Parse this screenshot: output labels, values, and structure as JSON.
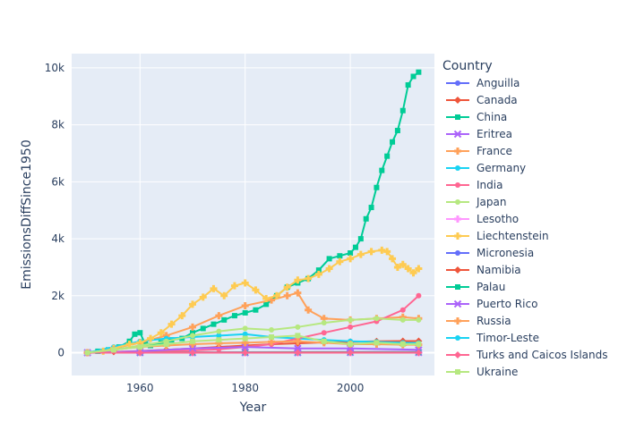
{
  "chart_data": {
    "type": "line",
    "xlabel": "Year",
    "ylabel": "EmissionsDiffSince1950",
    "xlim": [
      1947,
      2016
    ],
    "ylim": [
      -800,
      10500
    ],
    "x_ticks": [
      1960,
      1980,
      2000
    ],
    "x_tick_labels": [
      "1960",
      "1980",
      "2000"
    ],
    "y_ticks": [
      0,
      2000,
      4000,
      6000,
      8000,
      10000
    ],
    "y_tick_labels": [
      "0",
      "2k",
      "4k",
      "6k",
      "8k",
      "10k"
    ],
    "grid": true,
    "legend_title": "Country",
    "legend_position": "right",
    "series": [
      {
        "name": "Anguilla",
        "color": "#636efa",
        "marker": "circle",
        "x": [
          1950,
          1960,
          1970,
          1980,
          1990,
          2000,
          2013
        ],
        "y": [
          0,
          5,
          10,
          15,
          20,
          25,
          30
        ]
      },
      {
        "name": "Canada",
        "color": "#EF553B",
        "marker": "diamond",
        "x": [
          1950,
          1955,
          1960,
          1965,
          1970,
          1975,
          1980,
          1985,
          1990,
          1995,
          2000,
          2005,
          2010,
          2013
        ],
        "y": [
          0,
          30,
          60,
          100,
          150,
          200,
          250,
          300,
          330,
          360,
          380,
          400,
          410,
          410
        ]
      },
      {
        "name": "China",
        "color": "#00cc96",
        "marker": "square",
        "x": [
          1950,
          1952,
          1954,
          1956,
          1958,
          1959,
          1960,
          1961,
          1962,
          1964,
          1966,
          1968,
          1970,
          1972,
          1974,
          1976,
          1978,
          1980,
          1982,
          1984,
          1986,
          1988,
          1990,
          1992,
          1994,
          1996,
          1998,
          2000,
          2001,
          2002,
          2003,
          2004,
          2005,
          2006,
          2007,
          2008,
          2009,
          2010,
          2011,
          2012,
          2013
        ],
        "y": [
          0,
          50,
          100,
          200,
          400,
          650,
          700,
          300,
          250,
          350,
          450,
          500,
          700,
          850,
          1000,
          1150,
          1300,
          1400,
          1500,
          1700,
          2000,
          2300,
          2450,
          2600,
          2900,
          3300,
          3400,
          3500,
          3700,
          4000,
          4700,
          5100,
          5800,
          6400,
          6900,
          7400,
          7800,
          8500,
          9400,
          9700,
          9850
        ]
      },
      {
        "name": "Eritrea",
        "color": "#ab63fa",
        "marker": "x",
        "x": [
          1950,
          1960,
          1970,
          1980,
          1990,
          2000,
          2013
        ],
        "y": [
          0,
          0,
          0,
          0,
          0,
          5,
          5
        ]
      },
      {
        "name": "France",
        "color": "#FFA15A",
        "marker": "cross",
        "x": [
          1950,
          1955,
          1960,
          1965,
          1970,
          1975,
          1980,
          1985,
          1988,
          1990,
          1992,
          1995,
          2000,
          2005,
          2010,
          2013
        ],
        "y": [
          0,
          150,
          350,
          600,
          900,
          1300,
          1650,
          1850,
          2000,
          2100,
          1500,
          1200,
          1150,
          1200,
          1250,
          1200
        ]
      },
      {
        "name": "Germany",
        "color": "#19d3f3",
        "marker": "circle",
        "x": [
          1950,
          1955,
          1960,
          1965,
          1970,
          1975,
          1980,
          1985,
          1990,
          1995,
          2000,
          2005,
          2010,
          2013
        ],
        "y": [
          0,
          200,
          400,
          500,
          550,
          600,
          650,
          550,
          500,
          450,
          400,
          380,
          350,
          340
        ]
      },
      {
        "name": "India",
        "color": "#FF6692",
        "marker": "circle",
        "x": [
          1950,
          1960,
          1970,
          1975,
          1980,
          1985,
          1990,
          1995,
          2000,
          2005,
          2010,
          2013
        ],
        "y": [
          0,
          30,
          80,
          120,
          200,
          300,
          500,
          700,
          900,
          1100,
          1500,
          2000
        ]
      },
      {
        "name": "Japan",
        "color": "#B6E880",
        "marker": "circle",
        "x": [
          1950,
          1955,
          1960,
          1965,
          1970,
          1975,
          1980,
          1985,
          1990,
          1995,
          2000,
          2005,
          2010,
          2013
        ],
        "y": [
          0,
          100,
          250,
          400,
          600,
          750,
          850,
          800,
          900,
          1050,
          1150,
          1200,
          1150,
          1150
        ]
      },
      {
        "name": "Lesotho",
        "color": "#FF97FF",
        "marker": "cross",
        "x": [
          1950,
          1960,
          1970,
          1980,
          1990,
          2000,
          2013
        ],
        "y": [
          0,
          0,
          0,
          0,
          0,
          0,
          0
        ]
      },
      {
        "name": "Liechtenstein",
        "color": "#FECB52",
        "marker": "cross",
        "x": [
          1950,
          1953,
          1955,
          1958,
          1960,
          1962,
          1964,
          1966,
          1968,
          1970,
          1972,
          1974,
          1976,
          1978,
          1980,
          1982,
          1984,
          1986,
          1988,
          1990,
          1992,
          1994,
          1996,
          1998,
          2000,
          2002,
          2004,
          2006,
          2007,
          2008,
          2009,
          2010,
          2011,
          2012,
          2013
        ],
        "y": [
          0,
          50,
          150,
          300,
          350,
          500,
          700,
          1000,
          1300,
          1700,
          1950,
          2250,
          2000,
          2350,
          2450,
          2200,
          1900,
          2000,
          2300,
          2550,
          2600,
          2750,
          2950,
          3200,
          3300,
          3450,
          3550,
          3600,
          3550,
          3300,
          3000,
          3100,
          2950,
          2800,
          2950
        ]
      },
      {
        "name": "Micronesia",
        "color": "#636efa",
        "marker": "circle",
        "x": [
          1950,
          1960,
          1970,
          1980,
          1990,
          2000,
          2013
        ],
        "y": [
          0,
          0,
          5,
          5,
          5,
          5,
          5
        ]
      },
      {
        "name": "Namibia",
        "color": "#EF553B",
        "marker": "diamond",
        "x": [
          1950,
          1960,
          1970,
          1980,
          1990,
          2000,
          2013
        ],
        "y": [
          0,
          5,
          10,
          10,
          15,
          15,
          20
        ]
      },
      {
        "name": "Palau",
        "color": "#00cc96",
        "marker": "square",
        "x": [
          1950,
          1960,
          1970,
          1980,
          1990,
          2000,
          2013
        ],
        "y": [
          0,
          2,
          4,
          6,
          8,
          10,
          10
        ]
      },
      {
        "name": "Puerto Rico",
        "color": "#ab63fa",
        "marker": "x",
        "x": [
          1950,
          1960,
          1970,
          1980,
          1990,
          2000,
          2013
        ],
        "y": [
          0,
          50,
          150,
          200,
          150,
          150,
          100
        ]
      },
      {
        "name": "Russia",
        "color": "#FFA15A",
        "marker": "cross",
        "x": [
          1950,
          1955,
          1960,
          1965,
          1970,
          1975,
          1980,
          1985,
          1990,
          1995,
          2000,
          2005,
          2010,
          2013
        ],
        "y": [
          0,
          100,
          200,
          250,
          300,
          330,
          350,
          380,
          400,
          350,
          300,
          300,
          280,
          280
        ]
      },
      {
        "name": "Timor-Leste",
        "color": "#19d3f3",
        "marker": "circle",
        "x": [
          1950,
          1960,
          1970,
          1980,
          1990,
          2000,
          2013
        ],
        "y": [
          0,
          0,
          0,
          0,
          0,
          0,
          5
        ]
      },
      {
        "name": "Turks and Caicos Islands",
        "color": "#FF6692",
        "marker": "diamond",
        "x": [
          1950,
          1960,
          1970,
          1980,
          1990,
          2000,
          2013
        ],
        "y": [
          0,
          0,
          0,
          0,
          0,
          0,
          0
        ]
      },
      {
        "name": "Ukraine",
        "color": "#B6E880",
        "marker": "square",
        "x": [
          1950,
          1955,
          1960,
          1965,
          1970,
          1975,
          1980,
          1985,
          1990,
          1995,
          2000,
          2005,
          2010,
          2013
        ],
        "y": [
          0,
          100,
          200,
          300,
          400,
          450,
          500,
          550,
          600,
          400,
          300,
          350,
          300,
          300
        ]
      }
    ]
  }
}
